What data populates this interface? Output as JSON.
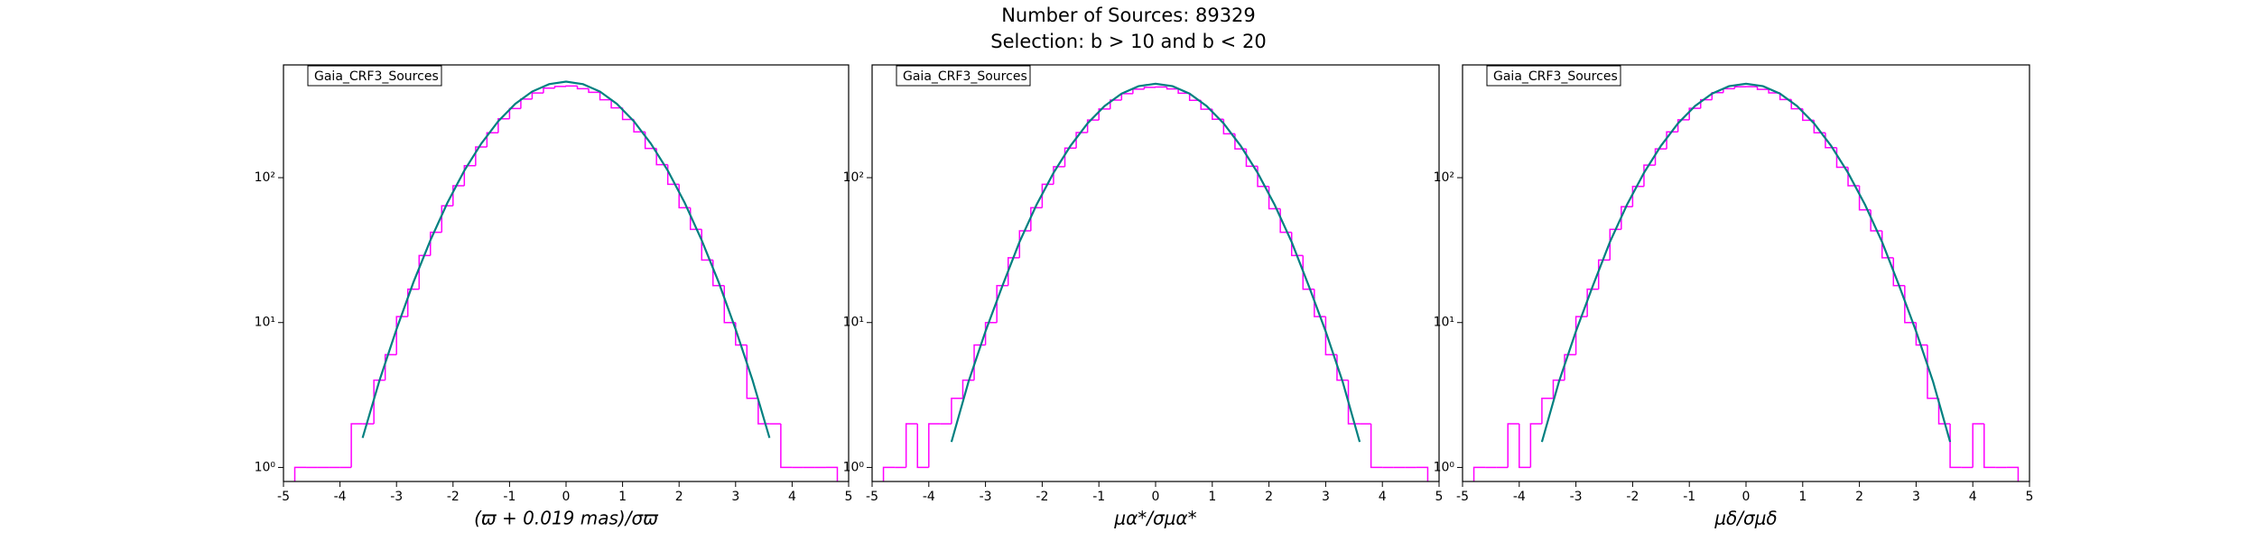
{
  "figure": {
    "title": "Number of Sources: 89329",
    "subtitle": "Selection: b > 10 and b < 20"
  },
  "chart_data": [
    {
      "type": "histogram",
      "xlabel": "(ϖ + 0.019 mas)/σϖ",
      "xlim": [
        -5,
        5
      ],
      "xticks": [
        -5,
        -4,
        -3,
        -2,
        -1,
        0,
        1,
        2,
        3,
        4,
        5
      ],
      "ylim": [
        0.8,
        600
      ],
      "log_y": true,
      "yticks": [
        {
          "value": 1,
          "label": "10⁰"
        },
        {
          "value": 10,
          "label": "10¹"
        },
        {
          "value": 100,
          "label": "10²"
        }
      ],
      "legend": "upper left",
      "bins": [
        -4.8,
        -4.6,
        -4.4,
        -4.2,
        -4.0,
        -3.8,
        -3.6,
        -3.4,
        -3.2,
        -3.0,
        -2.8,
        -2.6,
        -2.4,
        -2.2,
        -2.0,
        -1.8,
        -1.6,
        -1.4,
        -1.2,
        -1.0,
        -0.8,
        -0.6,
        -0.4,
        -0.2,
        0.0,
        0.2,
        0.4,
        0.6,
        0.8,
        1.0,
        1.2,
        1.4,
        1.6,
        1.8,
        2.0,
        2.2,
        2.4,
        2.6,
        2.8,
        3.0,
        3.2,
        3.4,
        3.6,
        3.8,
        4.0,
        4.2,
        4.4,
        4.6,
        4.8
      ],
      "series": [
        {
          "name": "Gaia_CRF3_Sources",
          "color": "#ff00ff",
          "values": [
            1,
            1,
            1,
            1,
            1,
            2,
            2,
            4,
            6,
            11,
            17,
            29,
            42,
            64,
            88,
            121,
            163,
            204,
            255,
            300,
            349,
            384,
            415,
            426,
            429,
            411,
            388,
            345,
            303,
            252,
            207,
            159,
            123,
            90,
            62,
            44,
            27,
            18,
            10,
            7,
            3,
            2,
            2,
            1,
            1,
            1,
            1,
            1
          ]
        }
      ],
      "fit": {
        "color": "#008080",
        "x": [
          -3.6,
          -3.3,
          -3.0,
          -2.7,
          -2.4,
          -2.1,
          -1.8,
          -1.5,
          -1.2,
          -0.9,
          -0.6,
          -0.3,
          0,
          0.3,
          0.6,
          0.9,
          1.2,
          1.5,
          1.8,
          2.1,
          2.4,
          2.7,
          3.0,
          3.3,
          3.6
        ],
        "values": [
          1.6,
          4.0,
          9.0,
          19,
          37,
          67,
          112,
          172,
          245,
          323,
          393,
          442,
          460,
          442,
          393,
          323,
          245,
          172,
          112,
          67,
          37,
          19,
          9.0,
          4.0,
          1.6
        ]
      }
    },
    {
      "type": "histogram",
      "xlabel": "μα*/σμα*",
      "xlim": [
        -5,
        5
      ],
      "xticks": [
        -5,
        -4,
        -3,
        -2,
        -1,
        0,
        1,
        2,
        3,
        4,
        5
      ],
      "ylim": [
        0.8,
        600
      ],
      "log_y": true,
      "yticks": [
        {
          "value": 1,
          "label": "10⁰"
        },
        {
          "value": 10,
          "label": "10¹"
        },
        {
          "value": 100,
          "label": "10²"
        }
      ],
      "legend": "upper left",
      "bins": [
        -4.8,
        -4.6,
        -4.4,
        -4.2,
        -4.0,
        -3.8,
        -3.6,
        -3.4,
        -3.2,
        -3.0,
        -2.8,
        -2.6,
        -2.4,
        -2.2,
        -2.0,
        -1.8,
        -1.6,
        -1.4,
        -1.2,
        -1.0,
        -0.8,
        -0.6,
        -0.4,
        -0.2,
        0.0,
        0.2,
        0.4,
        0.6,
        0.8,
        1.0,
        1.2,
        1.4,
        1.6,
        1.8,
        2.0,
        2.2,
        2.4,
        2.6,
        2.8,
        3.0,
        3.2,
        3.4,
        3.6,
        3.8,
        4.0,
        4.2,
        4.4,
        4.6,
        4.8
      ],
      "series": [
        {
          "name": "Gaia_CRF3_Sources",
          "color": "#ff00ff",
          "values": [
            1,
            1,
            2,
            1,
            2,
            2,
            3,
            4,
            7,
            10,
            18,
            28,
            43,
            62,
            90,
            119,
            160,
            205,
            250,
            298,
            343,
            380,
            408,
            420,
            422,
            410,
            383,
            342,
            297,
            253,
            201,
            158,
            120,
            87,
            61,
            42,
            29,
            17,
            11,
            6,
            4,
            2,
            2,
            1,
            1,
            1,
            1,
            1
          ]
        }
      ],
      "fit": {
        "color": "#008080",
        "x": [
          -3.6,
          -3.3,
          -3.0,
          -2.7,
          -2.4,
          -2.1,
          -1.8,
          -1.5,
          -1.2,
          -0.9,
          -0.6,
          -0.3,
          0,
          0.3,
          0.6,
          0.9,
          1.2,
          1.5,
          1.8,
          2.1,
          2.4,
          2.7,
          3.0,
          3.3,
          3.6
        ],
        "values": [
          1.5,
          3.9,
          8.7,
          18,
          36,
          65,
          108,
          166,
          237,
          312,
          380,
          428,
          445,
          428,
          380,
          312,
          237,
          166,
          108,
          65,
          36,
          18,
          8.7,
          3.9,
          1.5
        ]
      }
    },
    {
      "type": "histogram",
      "xlabel": "μδ/σμδ",
      "xlim": [
        -5,
        5
      ],
      "xticks": [
        -5,
        -4,
        -3,
        -2,
        -1,
        0,
        1,
        2,
        3,
        4,
        5
      ],
      "ylim": [
        0.8,
        600
      ],
      "log_y": true,
      "yticks": [
        {
          "value": 1,
          "label": "10⁰"
        },
        {
          "value": 10,
          "label": "10¹"
        },
        {
          "value": 100,
          "label": "10²"
        }
      ],
      "legend": "upper left",
      "bins": [
        -4.8,
        -4.6,
        -4.4,
        -4.2,
        -4.0,
        -3.8,
        -3.6,
        -3.4,
        -3.2,
        -3.0,
        -2.8,
        -2.6,
        -2.4,
        -2.2,
        -2.0,
        -1.8,
        -1.6,
        -1.4,
        -1.2,
        -1.0,
        -0.8,
        -0.6,
        -0.4,
        -0.2,
        0.0,
        0.2,
        0.4,
        0.6,
        0.8,
        1.0,
        1.2,
        1.4,
        1.6,
        1.8,
        2.0,
        2.2,
        2.4,
        2.6,
        2.8,
        3.0,
        3.2,
        3.4,
        3.6,
        3.8,
        4.0,
        4.2,
        4.4,
        4.6,
        4.8
      ],
      "series": [
        {
          "name": "Gaia_CRF3_Sources",
          "color": "#ff00ff",
          "values": [
            1,
            1,
            1,
            2,
            1,
            2,
            3,
            4,
            6,
            11,
            17,
            27,
            44,
            63,
            87,
            122,
            158,
            207,
            251,
            301,
            345,
            386,
            411,
            424,
            425,
            407,
            385,
            346,
            299,
            249,
            204,
            161,
            118,
            88,
            60,
            43,
            28,
            18,
            10,
            7,
            3,
            2,
            1,
            1,
            2,
            1,
            1,
            1
          ]
        }
      ],
      "fit": {
        "color": "#008080",
        "x": [
          -3.6,
          -3.3,
          -3.0,
          -2.7,
          -2.4,
          -2.1,
          -1.8,
          -1.5,
          -1.2,
          -0.9,
          -0.6,
          -0.3,
          0,
          0.3,
          0.6,
          0.9,
          1.2,
          1.5,
          1.8,
          2.1,
          2.4,
          2.7,
          3.0,
          3.3,
          3.6
        ],
        "values": [
          1.5,
          3.9,
          8.7,
          18,
          36,
          65,
          108,
          166,
          237,
          312,
          380,
          428,
          445,
          428,
          380,
          312,
          237,
          166,
          108,
          65,
          36,
          18,
          8.7,
          3.9,
          1.5
        ]
      }
    }
  ]
}
